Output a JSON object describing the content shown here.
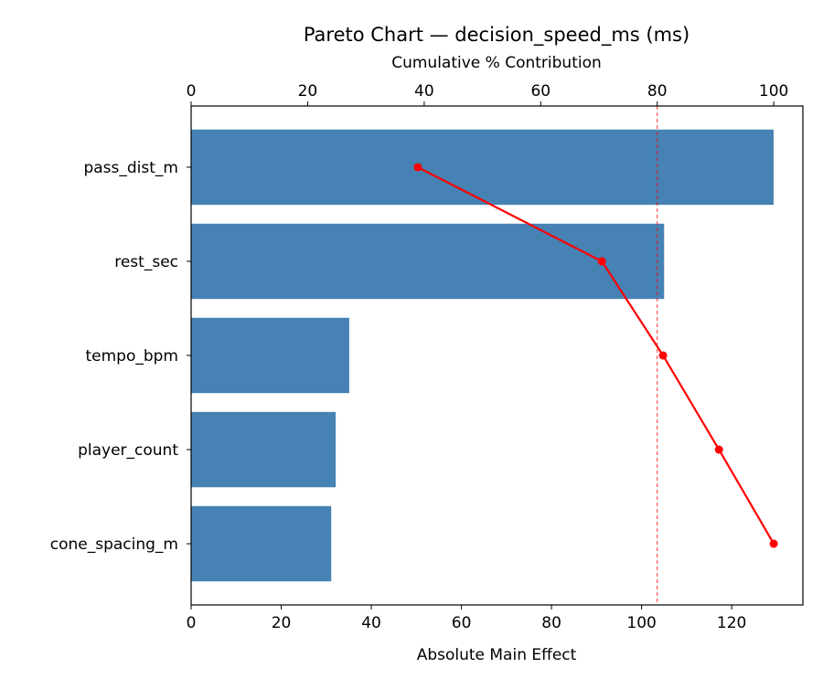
{
  "chart_data": {
    "type": "bar",
    "orientation": "horizontal",
    "title": "Pareto Chart — decision_speed_ms (ms)",
    "xlabel": "Absolute Main Effect",
    "x2label": "Cumulative % Contribution",
    "categories": [
      "pass_dist_m",
      "rest_sec",
      "tempo_bpm",
      "player_count",
      "cone_spacing_m"
    ],
    "values": [
      129.3,
      105.0,
      35.1,
      32.1,
      31.1
    ],
    "cumulative_percent": [
      38.9,
      70.5,
      81.0,
      90.6,
      100.0
    ],
    "threshold_percent": 80,
    "xlim": [
      0,
      135.8
    ],
    "x2lim": [
      0,
      105
    ],
    "xticks": [
      0,
      20,
      40,
      60,
      80,
      100,
      120
    ],
    "x2ticks": [
      0,
      20,
      40,
      60,
      80,
      100
    ],
    "bar_color": "#4682b4",
    "line_color": "#ff0000",
    "threshold_color": "#ff0000",
    "grid": false
  }
}
